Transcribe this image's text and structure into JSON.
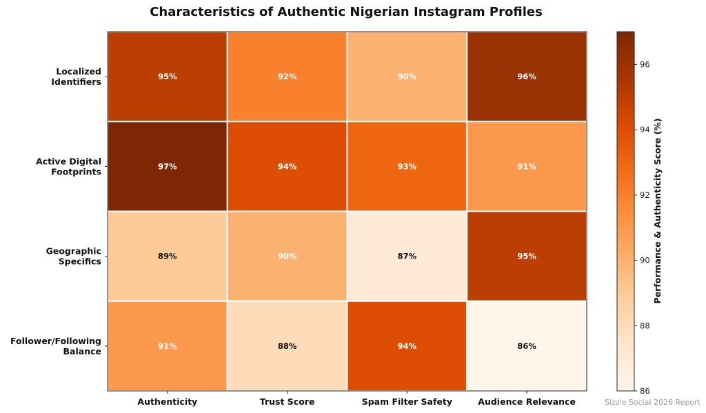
{
  "chart_data": {
    "type": "heatmap",
    "title": "Characteristics of Authentic Nigerian Instagram Profiles",
    "rows": [
      [
        "Localized",
        "Identifiers"
      ],
      [
        "Active Digital",
        "Footprints"
      ],
      [
        "Geographic",
        "Specifics"
      ],
      [
        "Follower/Following",
        "Balance"
      ]
    ],
    "columns": [
      "Authenticity",
      "Trust Score",
      "Spam Filter Safety",
      "Audience Relevance"
    ],
    "values": [
      [
        95,
        92,
        90,
        96
      ],
      [
        97,
        94,
        93,
        91
      ],
      [
        89,
        90,
        87,
        95
      ],
      [
        91,
        88,
        94,
        86
      ]
    ],
    "cell_labels": [
      [
        "95%",
        "92%",
        "90%",
        "96%"
      ],
      [
        "97%",
        "94%",
        "93%",
        "91%"
      ],
      [
        "89%",
        "90%",
        "87%",
        "95%"
      ],
      [
        "91%",
        "88%",
        "94%",
        "86%"
      ]
    ],
    "colorbar": {
      "label": "Performance & Authenticity Score (%)",
      "range": [
        86,
        97
      ],
      "ticks": [
        86,
        88,
        90,
        92,
        94,
        96
      ],
      "colormap": "Oranges"
    },
    "grid": false,
    "source_note": "Sizzle Social 2026 Report"
  }
}
